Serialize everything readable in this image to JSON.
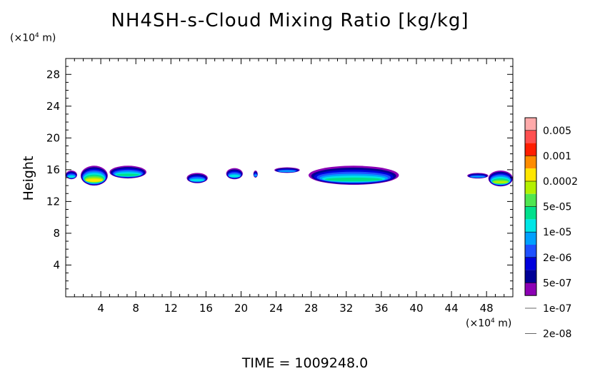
{
  "chart_data": {
    "type": "heatmap",
    "title": "NH4SH-s-Cloud Mixing Ratio [kg/kg]",
    "xlabel": "",
    "ylabel": "Height",
    "x_unit": {
      "prefix": "(×10",
      "exp": "4",
      "suffix": " m)"
    },
    "y_unit": {
      "prefix": "(×10",
      "exp": "4",
      "suffix": " m)"
    },
    "xlim": [
      0,
      51
    ],
    "ylim": [
      0,
      30
    ],
    "x_ticks": [
      "4",
      "8",
      "12",
      "16",
      "20",
      "24",
      "28",
      "32",
      "36",
      "40",
      "44",
      "48"
    ],
    "y_ticks": [
      "4",
      "8",
      "12",
      "16",
      "20",
      "24",
      "28"
    ],
    "colorbar": {
      "labels": [
        "0.005",
        "0.001",
        "0.0002",
        "5e-05",
        "1e-05",
        "2e-06",
        "5e-07",
        "1e-07",
        "2e-08"
      ],
      "colors": [
        "#ffaaaa",
        "#ff5050",
        "#ff1e00",
        "#ff8c00",
        "#ffe600",
        "#b4f000",
        "#50e650",
        "#00e08c",
        "#00e6e6",
        "#00a0ff",
        "#1e50ff",
        "#0000dc",
        "#000096",
        "#8c00b4"
      ]
    },
    "clouds": [
      {
        "x0": 0.0,
        "x1": 1.3,
        "base": 14.8,
        "top": 15.9,
        "peak": 1
      },
      {
        "x0": 1.7,
        "x1": 4.8,
        "base": 14.0,
        "top": 16.5,
        "peak": 5
      },
      {
        "x0": 5.0,
        "x1": 9.2,
        "base": 14.9,
        "top": 16.5,
        "peak": 2
      },
      {
        "x0": 13.8,
        "x1": 16.2,
        "base": 14.3,
        "top": 15.6,
        "peak": 1
      },
      {
        "x0": 18.3,
        "x1": 20.2,
        "base": 14.8,
        "top": 16.2,
        "peak": 1
      },
      {
        "x0": 21.4,
        "x1": 21.9,
        "base": 15.0,
        "top": 15.9,
        "peak": 0
      },
      {
        "x0": 23.8,
        "x1": 26.7,
        "base": 15.6,
        "top": 16.3,
        "peak": 0
      },
      {
        "x0": 27.7,
        "x1": 38.0,
        "base": 14.1,
        "top": 16.5,
        "peak": 2
      },
      {
        "x0": 45.8,
        "x1": 48.2,
        "base": 14.9,
        "top": 15.6,
        "peak": 0
      },
      {
        "x0": 48.2,
        "x1": 51.0,
        "base": 13.9,
        "top": 15.9,
        "peak": 4
      }
    ]
  },
  "time": {
    "label": "TIME",
    "eq": " = ",
    "value": "1009248.0"
  }
}
